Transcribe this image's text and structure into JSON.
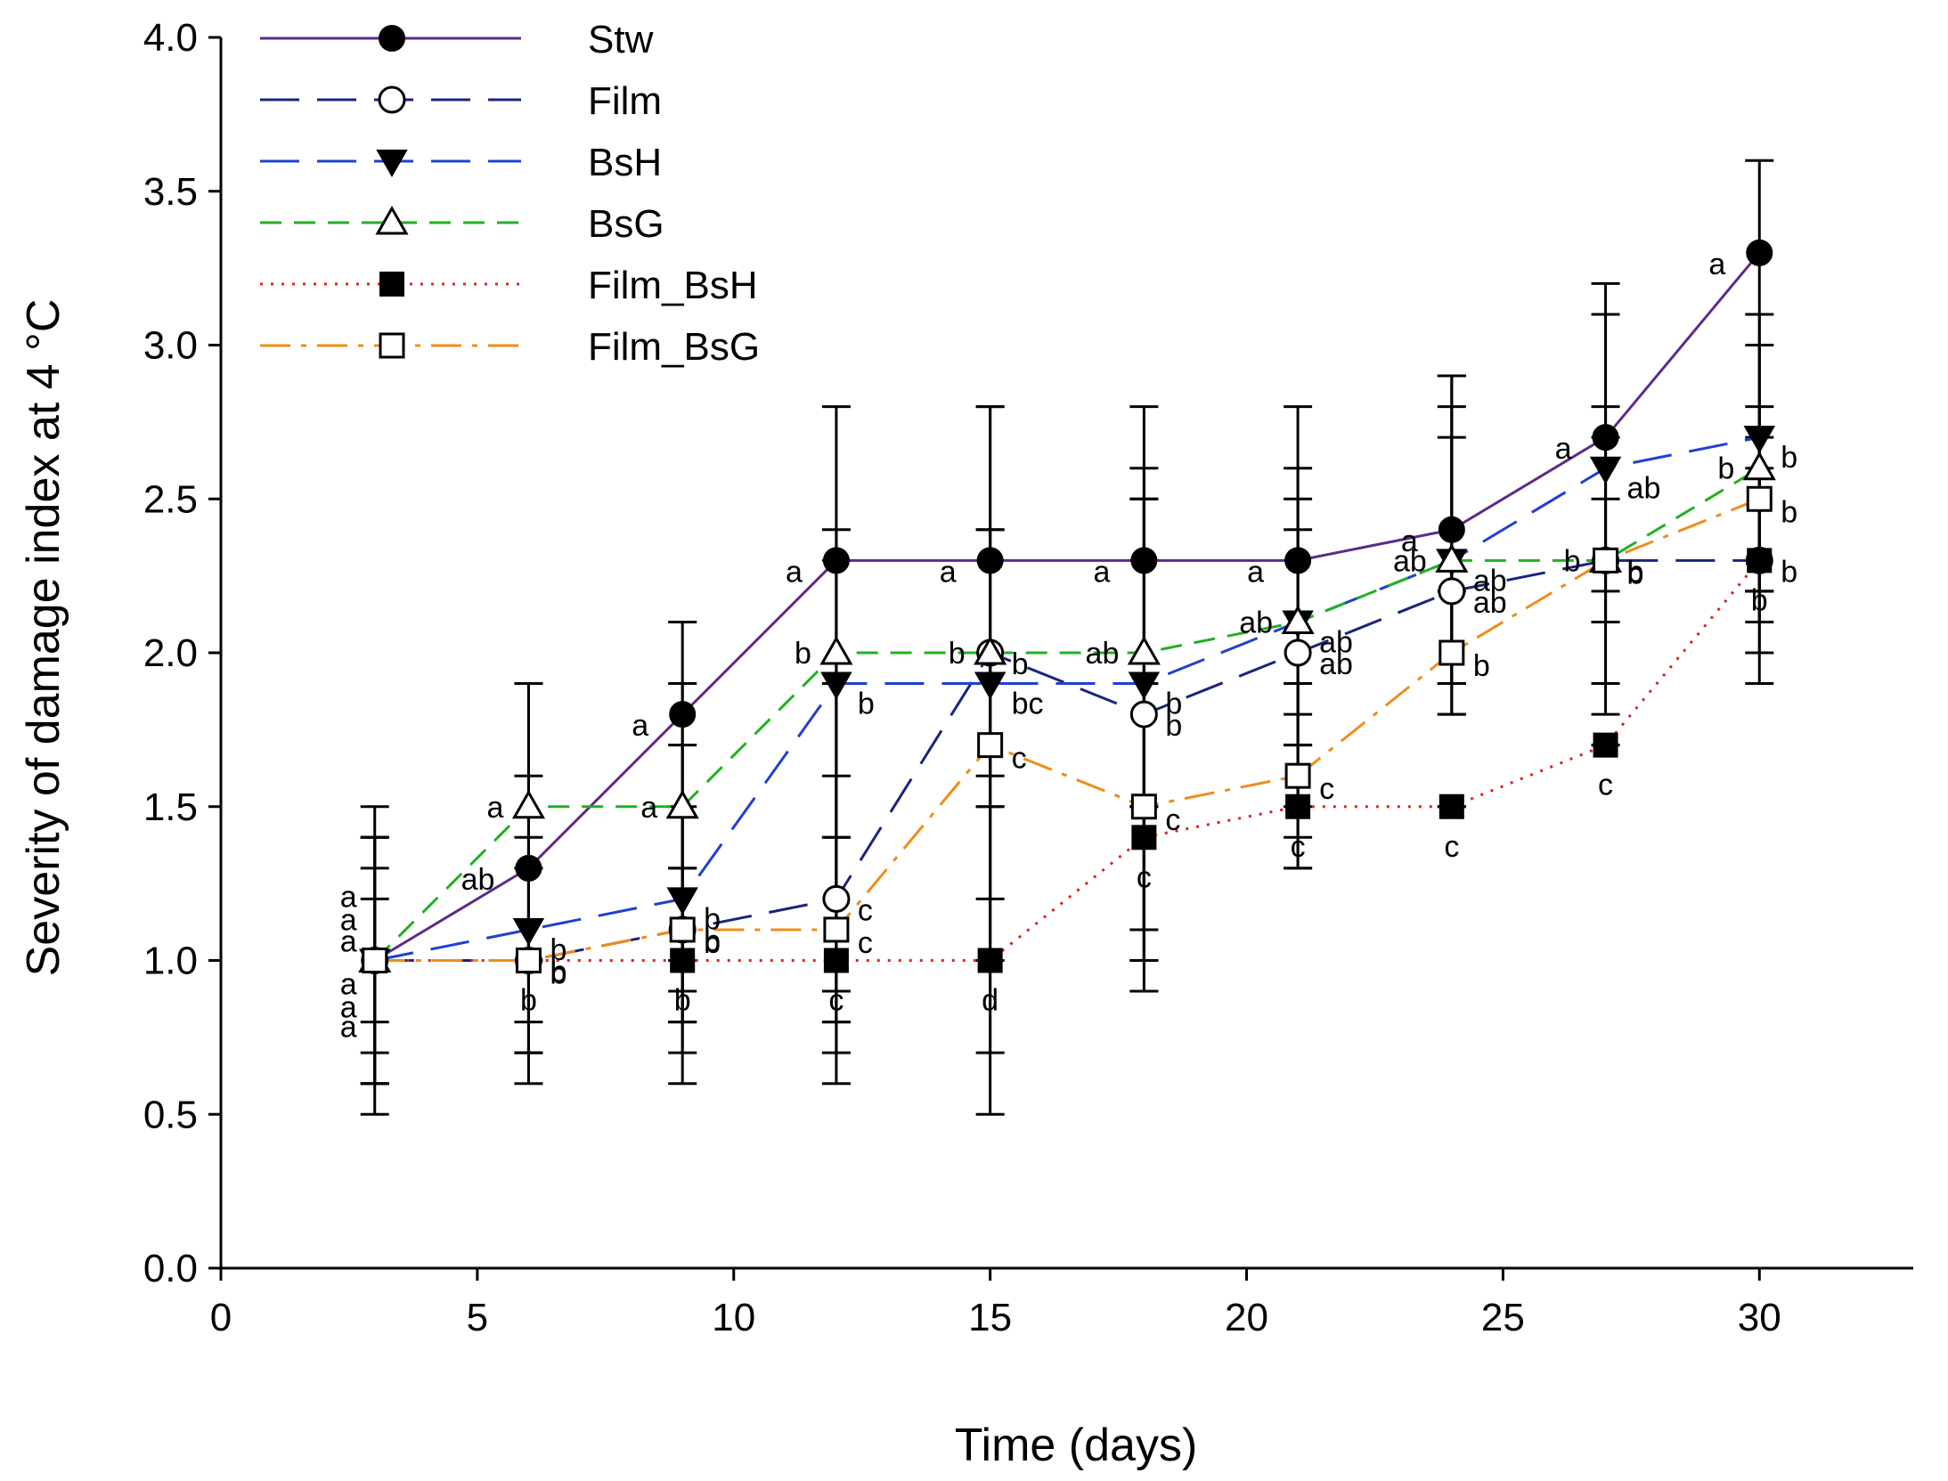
{
  "chart_data": {
    "type": "line",
    "title": "",
    "xlabel": "Time (days)",
    "ylabel": "Severity of damage index at 4 °C",
    "xlim": [
      0,
      33
    ],
    "ylim": [
      0.0,
      4.0
    ],
    "x_ticks": [
      0,
      5,
      10,
      15,
      20,
      25,
      30
    ],
    "x_tick_labels": [
      "0",
      "5",
      "10",
      "15",
      "20",
      "25",
      "30"
    ],
    "y_ticks": [
      0.0,
      0.5,
      1.0,
      1.5,
      2.0,
      2.5,
      3.0,
      3.5,
      4.0
    ],
    "y_tick_labels": [
      "0.0",
      "0.5",
      "1.0",
      "1.5",
      "2.0",
      "2.5",
      "3.0",
      "3.5",
      "4.0"
    ],
    "grid": false,
    "legend_position": "top-left",
    "x": [
      3,
      6,
      9,
      12,
      15,
      18,
      21,
      24,
      27,
      30
    ],
    "series": [
      {
        "name": "Stw",
        "color": "#5b2a8c",
        "dash": "solid",
        "marker": "filled-circle",
        "values": [
          1.0,
          1.3,
          1.8,
          2.3,
          2.3,
          2.3,
          2.3,
          2.4,
          2.7,
          3.3
        ],
        "err_low": [
          0.5,
          0.7,
          0.6,
          0.6,
          0.5,
          0.9,
          1.3,
          1.8,
          1.8,
          1.9
        ],
        "err_high": [
          1.5,
          1.9,
          2.1,
          2.8,
          2.8,
          2.8,
          2.8,
          2.9,
          3.2,
          3.6
        ],
        "letters": [
          "a",
          "ab",
          "a",
          "a",
          "a",
          "a",
          "a",
          "a",
          "a",
          "a"
        ]
      },
      {
        "name": "Film",
        "color": "#1a237e",
        "dash": "long-dash",
        "marker": "open-circle",
        "values": [
          1.0,
          1.0,
          1.1,
          1.2,
          2.0,
          1.8,
          2.0,
          2.2,
          2.3,
          2.3
        ],
        "err_low": [
          0.6,
          0.8,
          0.8,
          0.8,
          1.5,
          1.0,
          1.5,
          1.9,
          2.1,
          2.1
        ],
        "err_high": [
          1.4,
          1.3,
          1.5,
          1.9,
          2.8,
          2.6,
          2.5,
          2.9,
          2.8,
          2.7
        ],
        "letters": [
          "a",
          "b",
          "b",
          "c",
          "b",
          "b",
          "ab",
          "ab",
          "b",
          "b"
        ]
      },
      {
        "name": "BsH",
        "color": "#1f3fd6",
        "dash": "long-dash",
        "marker": "filled-triangle-down",
        "values": [
          1.0,
          1.1,
          1.2,
          1.9,
          1.9,
          1.9,
          2.1,
          2.3,
          2.6,
          2.7
        ],
        "err_low": [
          0.6,
          0.7,
          0.8,
          0.8,
          1.0,
          1.0,
          1.7,
          1.8,
          2.2,
          2.2
        ],
        "err_high": [
          1.4,
          1.6,
          1.7,
          2.4,
          2.4,
          2.5,
          2.6,
          2.8,
          3.1,
          3.1
        ],
        "letters": [
          "a",
          "b",
          "b",
          "b",
          "bc",
          "b",
          "ab",
          "ab",
          "ab",
          "b"
        ]
      },
      {
        "name": "BsG",
        "color": "#1fb21f",
        "dash": "dash",
        "marker": "open-triangle-up",
        "values": [
          1.0,
          1.5,
          1.5,
          2.0,
          2.0,
          2.0,
          2.1,
          2.3,
          2.3,
          2.6
        ],
        "err_low": [
          0.6,
          1.0,
          1.0,
          1.4,
          1.6,
          1.5,
          1.8,
          1.9,
          1.9,
          2.2
        ],
        "err_high": [
          1.4,
          1.9,
          1.9,
          2.3,
          2.4,
          2.5,
          2.4,
          2.7,
          2.7,
          3.0
        ],
        "letters": [
          "a",
          "a",
          "a",
          "b",
          "b",
          "ab",
          "ab",
          "ab",
          "b",
          "b"
        ]
      },
      {
        "name": "Film_BsH",
        "color": "#e32020",
        "dash": "dot",
        "marker": "filled-square",
        "values": [
          1.0,
          1.0,
          1.0,
          1.0,
          1.0,
          1.4,
          1.5,
          1.5,
          1.7,
          2.3
        ],
        "err_low": [
          0.7,
          0.7,
          0.7,
          0.7,
          0.7,
          1.0,
          1.3,
          1.5,
          1.7,
          2.0
        ],
        "err_high": [
          1.3,
          1.3,
          1.3,
          1.4,
          1.5,
          1.5,
          1.7,
          1.5,
          1.7,
          2.6
        ],
        "letters": [
          "a",
          "b",
          "b",
          "c",
          "d",
          "c",
          "c",
          "c",
          "c",
          "b"
        ]
      },
      {
        "name": "Film_BsG",
        "color": "#f08c1a",
        "dash": "dash-dot",
        "marker": "open-square",
        "values": [
          1.0,
          1.0,
          1.1,
          1.1,
          1.7,
          1.5,
          1.6,
          2.0,
          2.3,
          2.5
        ],
        "err_low": [
          0.8,
          0.6,
          0.9,
          0.9,
          1.2,
          1.1,
          1.4,
          1.9,
          2.1,
          2.2
        ],
        "err_high": [
          1.2,
          1.4,
          1.3,
          1.6,
          2.0,
          1.9,
          1.9,
          2.2,
          2.5,
          2.8
        ],
        "letters": [
          "a",
          "b",
          "b",
          "c",
          "c",
          "c",
          "c",
          "b",
          "b",
          "b"
        ]
      }
    ]
  }
}
